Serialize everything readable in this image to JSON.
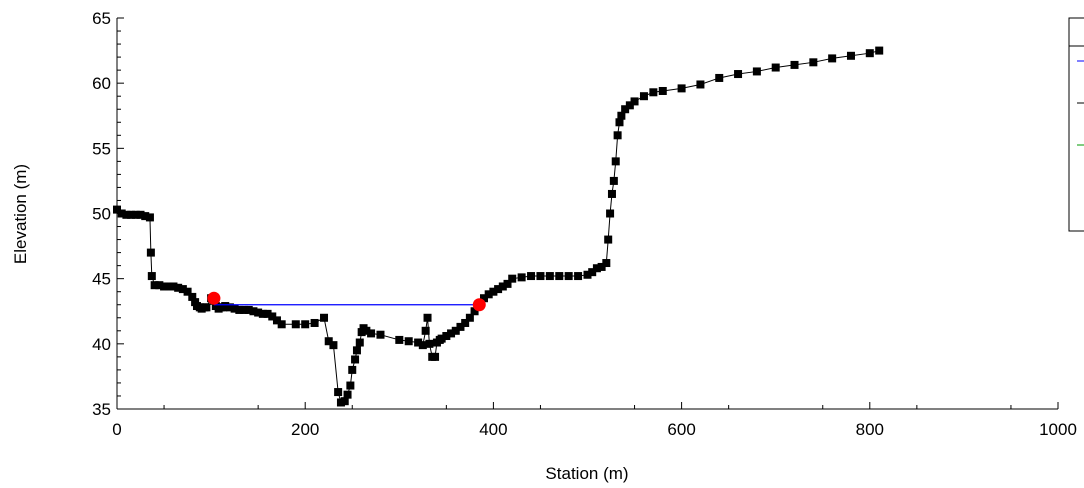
{
  "chart_data": {
    "type": "line",
    "xlabel": "Station (m)",
    "ylabel": "Elevation (m)",
    "xlim": [
      0,
      1000
    ],
    "ylim": [
      35,
      65
    ],
    "x_ticks": [
      "0",
      "200",
      "400",
      "600",
      "800",
      "1000"
    ],
    "y_ticks": [
      "35",
      "40",
      "45",
      "50",
      "55",
      "60",
      "65"
    ],
    "grid": false,
    "legend": "top-right, entries not legible",
    "colors": {
      "ground": "#000000",
      "water_surface": "#0000ff",
      "bank_markers": "#ff0000",
      "legend_green": "#009900"
    },
    "series": [
      {
        "role": "ground",
        "style": "line with square markers",
        "x": [
          0,
          5,
          10,
          15,
          20,
          25,
          30,
          35,
          36,
          37,
          40,
          45,
          50,
          55,
          60,
          65,
          70,
          75,
          80,
          83,
          85,
          88,
          90,
          93,
          95,
          100,
          103,
          105,
          108,
          110,
          113,
          115,
          120,
          125,
          130,
          135,
          140,
          145,
          150,
          155,
          160,
          165,
          170,
          175,
          190,
          200,
          210,
          220,
          225,
          230,
          235,
          238,
          242,
          245,
          248,
          250,
          253,
          255,
          258,
          260,
          262,
          265,
          270,
          280,
          300,
          310,
          320,
          325,
          328,
          330,
          332,
          335,
          338,
          340,
          343,
          345,
          350,
          355,
          360,
          365,
          370,
          375,
          380,
          385,
          390,
          395,
          400,
          405,
          410,
          415,
          420,
          430,
          440,
          450,
          460,
          470,
          480,
          490,
          500,
          505,
          510,
          515,
          520,
          522,
          524,
          526,
          528,
          530,
          532,
          534,
          536,
          540,
          545,
          550,
          560,
          570,
          580,
          600,
          620,
          640,
          660,
          680,
          700,
          720,
          740,
          760,
          780,
          800,
          810
        ],
        "y": [
          50.3,
          50.0,
          49.9,
          49.9,
          49.9,
          49.9,
          49.8,
          49.7,
          47.0,
          45.2,
          44.5,
          44.5,
          44.4,
          44.4,
          44.4,
          44.3,
          44.2,
          44.0,
          43.6,
          43.2,
          42.9,
          42.8,
          42.7,
          42.8,
          42.8,
          43.5,
          43.3,
          42.9,
          42.7,
          42.8,
          42.8,
          42.9,
          42.8,
          42.7,
          42.6,
          42.6,
          42.6,
          42.5,
          42.4,
          42.3,
          42.3,
          42.1,
          41.8,
          41.5,
          41.5,
          41.5,
          41.6,
          42.0,
          40.2,
          39.9,
          36.3,
          35.5,
          35.6,
          36.1,
          36.8,
          38.0,
          38.8,
          39.5,
          40.1,
          40.9,
          41.2,
          41.0,
          40.8,
          40.7,
          40.3,
          40.2,
          40.1,
          39.9,
          41.0,
          42.0,
          40.0,
          39.0,
          39.0,
          40.1,
          40.3,
          40.4,
          40.6,
          40.8,
          41.0,
          41.3,
          41.6,
          42.0,
          42.5,
          43.0,
          43.5,
          43.8,
          44.0,
          44.2,
          44.4,
          44.6,
          45.0,
          45.1,
          45.2,
          45.2,
          45.2,
          45.2,
          45.2,
          45.2,
          45.3,
          45.5,
          45.8,
          45.9,
          46.2,
          48.0,
          50.0,
          51.5,
          52.5,
          54.0,
          56.0,
          57.0,
          57.5,
          58.0,
          58.3,
          58.6,
          59.0,
          59.3,
          59.4,
          59.6,
          59.9,
          60.4,
          60.7,
          60.9,
          61.2,
          61.4,
          61.6,
          61.9,
          62.1,
          62.3,
          62.5
        ]
      },
      {
        "role": "water_surface",
        "style": "line",
        "x": [
          103,
          385
        ],
        "y": [
          43.0,
          43.0
        ]
      },
      {
        "role": "bank_markers",
        "style": "red circles",
        "x": [
          103,
          385
        ],
        "y": [
          43.5,
          43.0
        ]
      }
    ]
  }
}
